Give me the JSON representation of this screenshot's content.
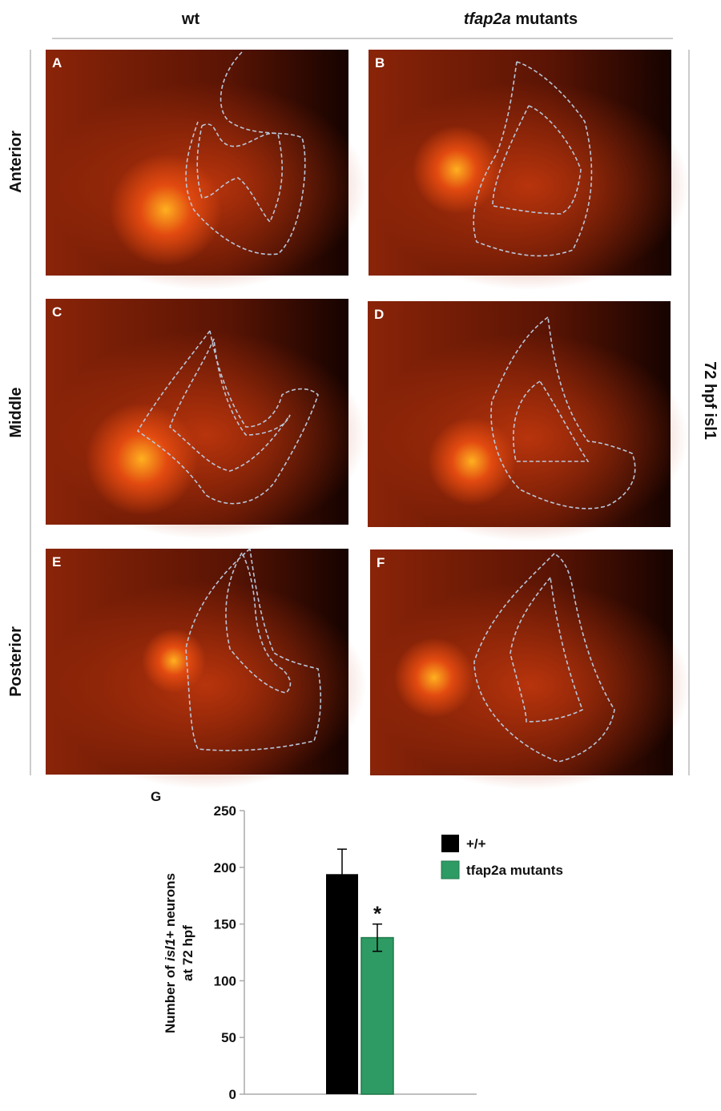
{
  "columns": [
    {
      "text": "wt"
    },
    {
      "gene": "tfap2a",
      "text": "mutants"
    }
  ],
  "rows": [
    "Anterior",
    "Middle",
    "Posterior"
  ],
  "panels": [
    "A",
    "B",
    "C",
    "D",
    "E",
    "F"
  ],
  "side_label": "72 hpf isl1",
  "chart_data": {
    "type": "bar",
    "panel": "G",
    "ylabel": {
      "line1_pre": "Number of",
      "gene": "isl1",
      "line1_post": "+ neurons",
      "line2": "at 72 hpf"
    },
    "series": [
      {
        "name": "+/+",
        "color": "#000000",
        "values": [
          194
        ],
        "errors": [
          22
        ]
      },
      {
        "name": "tfap2a mutants",
        "color": "#2e9a64",
        "values": [
          138
        ],
        "errors": [
          12
        ]
      }
    ],
    "annotation": "*",
    "ylim": [
      0,
      250
    ],
    "yticks": [
      0,
      50,
      100,
      150,
      200,
      250
    ]
  }
}
